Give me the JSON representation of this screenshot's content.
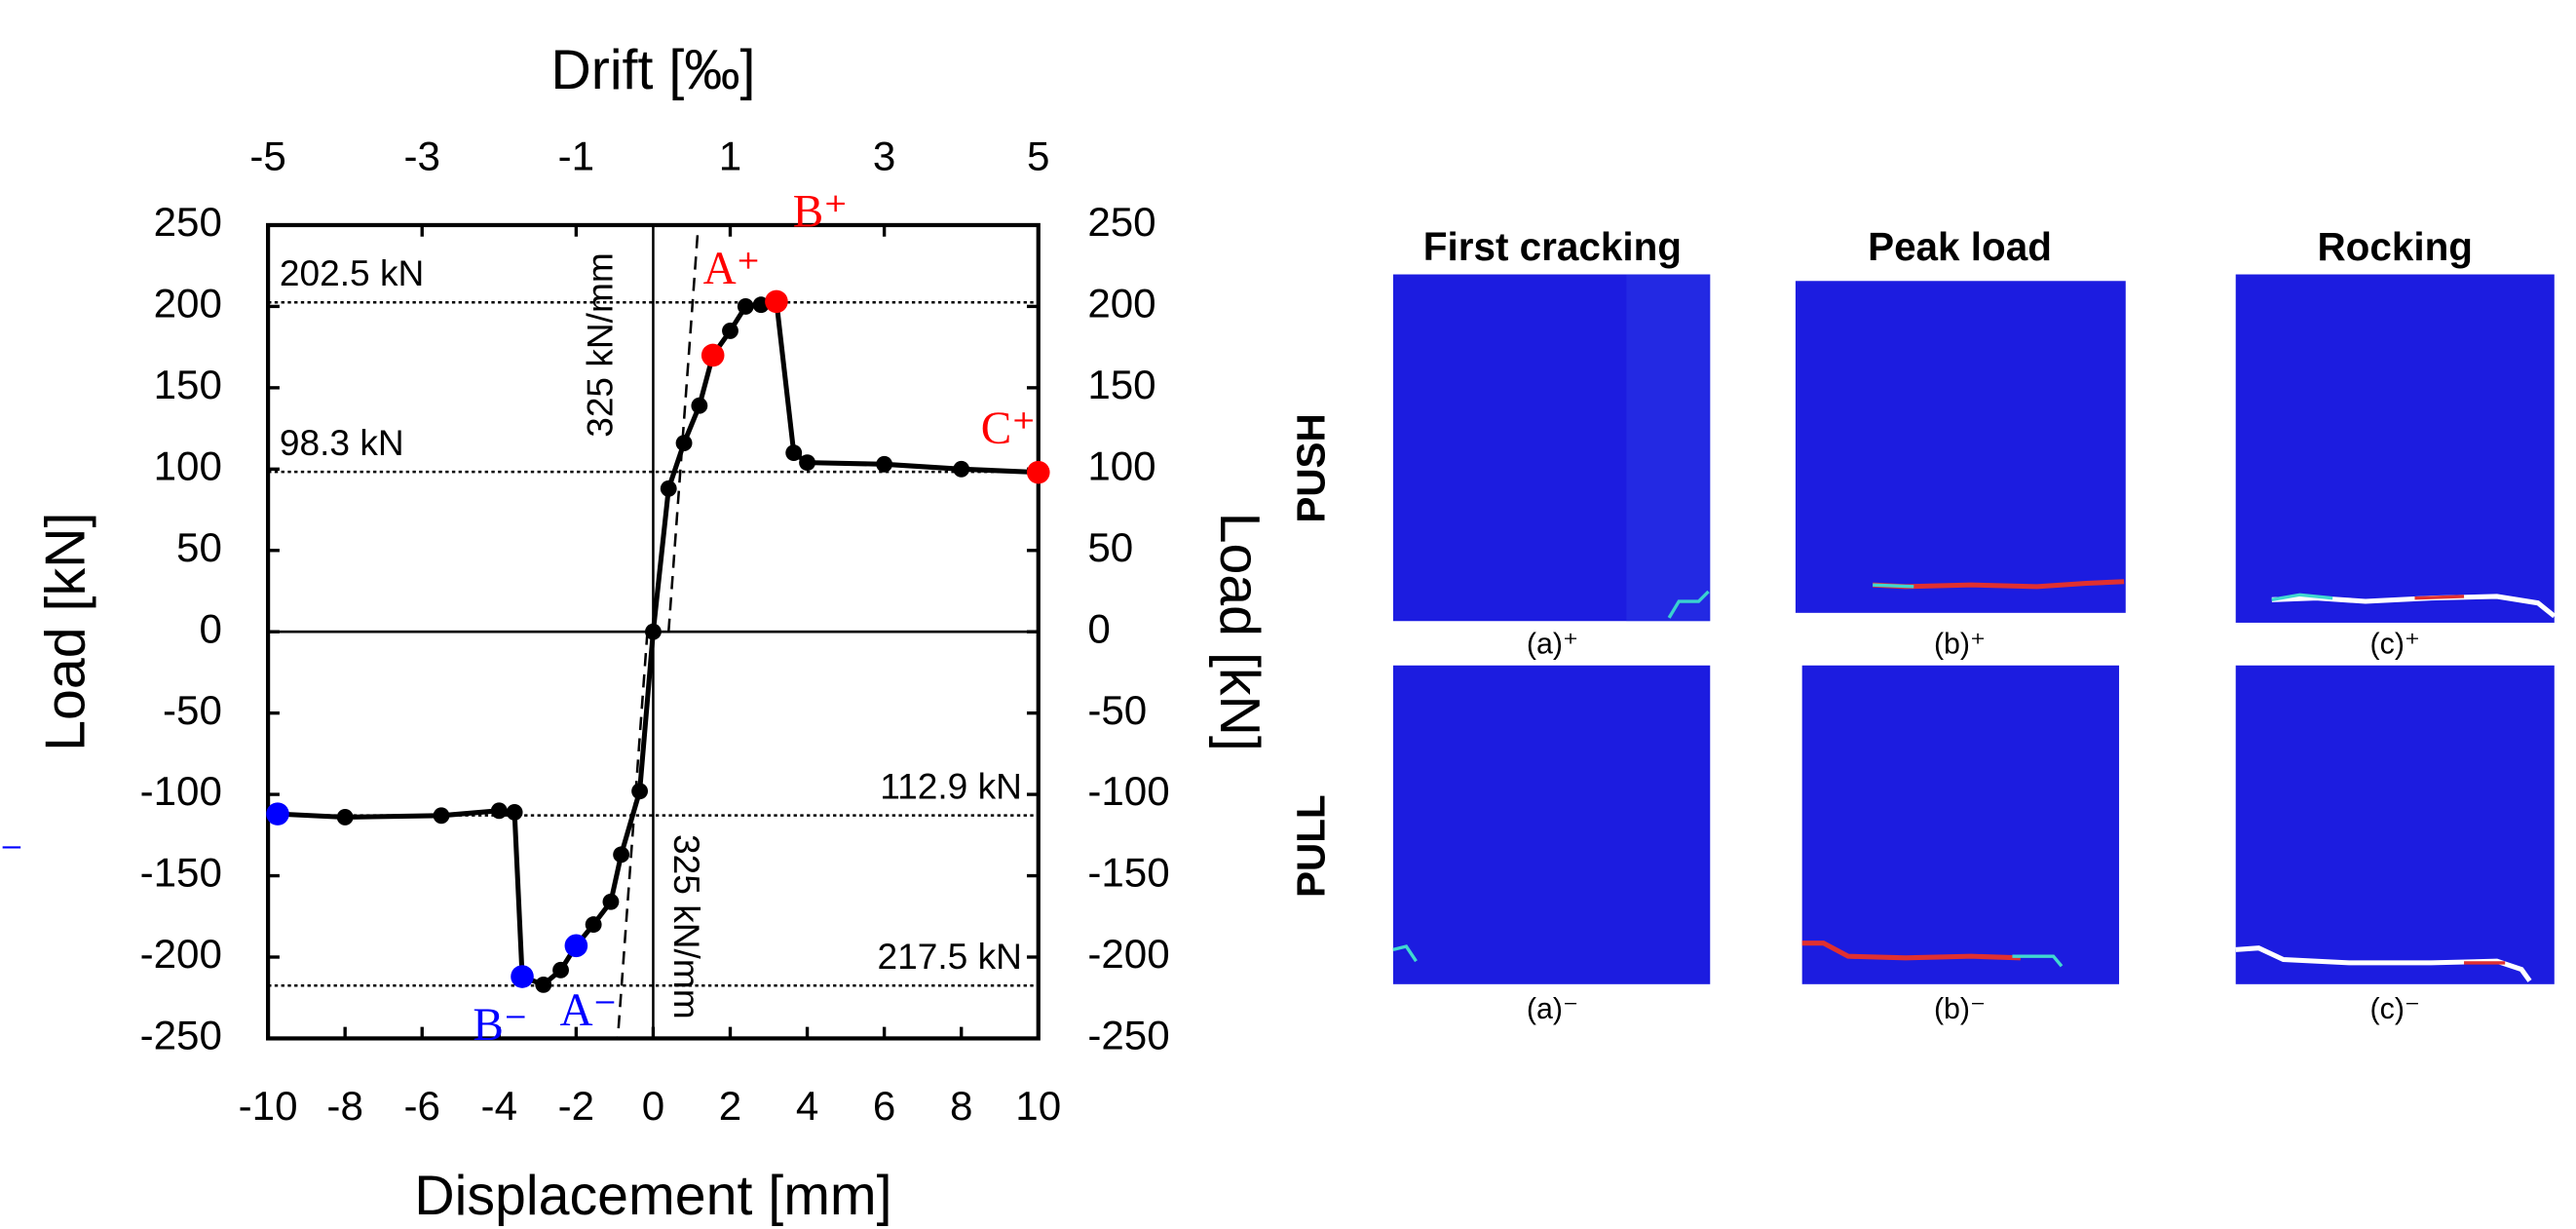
{
  "chart_data": {
    "type": "line",
    "xlabel": "Displacement [mm]",
    "x2label": "Drift [‰]",
    "ylabel": "Load [kN]",
    "y2label": "Load [kN]",
    "xlim": [
      -10,
      10
    ],
    "xticks": [
      -10,
      -8,
      -6,
      -4,
      -2,
      0,
      2,
      4,
      6,
      8,
      10
    ],
    "x2lim": [
      -5,
      5
    ],
    "x2ticks": [
      -5,
      -3,
      -1,
      1,
      3,
      5
    ],
    "ylim": [
      -250,
      250
    ],
    "yticks": [
      -250,
      -200,
      -150,
      -100,
      -50,
      0,
      50,
      100,
      150,
      200,
      250
    ],
    "y2lim": [
      -250,
      250
    ],
    "y2ticks": [
      -250,
      -200,
      -150,
      -100,
      -50,
      0,
      50,
      100,
      150,
      200,
      250
    ],
    "series": [
      {
        "color": "#000000",
        "x": [
          -9.75,
          -8,
          -5.5,
          -4,
          -3.6,
          -3.4,
          -2.85,
          -2.4,
          -2.0,
          -1.55,
          -1.1,
          -0.83,
          -0.35,
          0,
          0.4,
          0.8,
          1.2,
          1.55,
          2.0,
          2.4,
          2.8,
          3.2,
          3.65,
          4.0,
          6.0,
          8.0,
          10
        ],
        "values": [
          -112,
          -114,
          -113,
          -110,
          -111,
          -212,
          -217,
          -208,
          -193,
          -180,
          -166,
          -137,
          -98,
          0,
          88,
          116,
          139,
          170,
          185,
          200,
          201,
          203,
          110,
          104,
          103,
          100,
          98
        ]
      }
    ],
    "points": [
      {
        "label": "A⁺",
        "x": 1.55,
        "y": 170,
        "color": "#ff0000"
      },
      {
        "label": "B⁺",
        "x": 3.2,
        "y": 203,
        "color": "#ff0000"
      },
      {
        "label": "C⁺",
        "x": 10,
        "y": 98,
        "color": "#ff0000"
      },
      {
        "label": "A⁻",
        "x": -2.0,
        "y": -193,
        "color": "#0000ff"
      },
      {
        "label": "B⁻",
        "x": -3.4,
        "y": -212,
        "color": "#0000ff"
      },
      {
        "label": "C⁻",
        "x": -9.75,
        "y": -112,
        "color": "#0000ff"
      }
    ],
    "reference_lines": [
      {
        "value": 202.5,
        "label": "202.5 kN"
      },
      {
        "value": 98.3,
        "label": "98.3 kN"
      },
      {
        "value": -112.9,
        "label": "112.9 kN"
      },
      {
        "value": -217.5,
        "label": "217.5 kN"
      }
    ],
    "stiffness_lines": [
      {
        "label": "325 kN/mm",
        "x": [
          0.4,
          1.17
        ],
        "values": [
          0,
          250
        ]
      },
      {
        "label": "325 kN/mm",
        "x": [
          -0.15,
          -0.92
        ],
        "values": [
          0,
          -250
        ]
      }
    ]
  },
  "panels": {
    "columns": [
      "First cracking",
      "Peak load",
      "Rocking"
    ],
    "rows": [
      "PUSH",
      "PULL"
    ],
    "captions": [
      [
        "(a)⁺",
        "(b)⁺",
        "(c)⁺"
      ],
      [
        "(a)⁻",
        "(b)⁻",
        "(c)⁻"
      ]
    ]
  }
}
